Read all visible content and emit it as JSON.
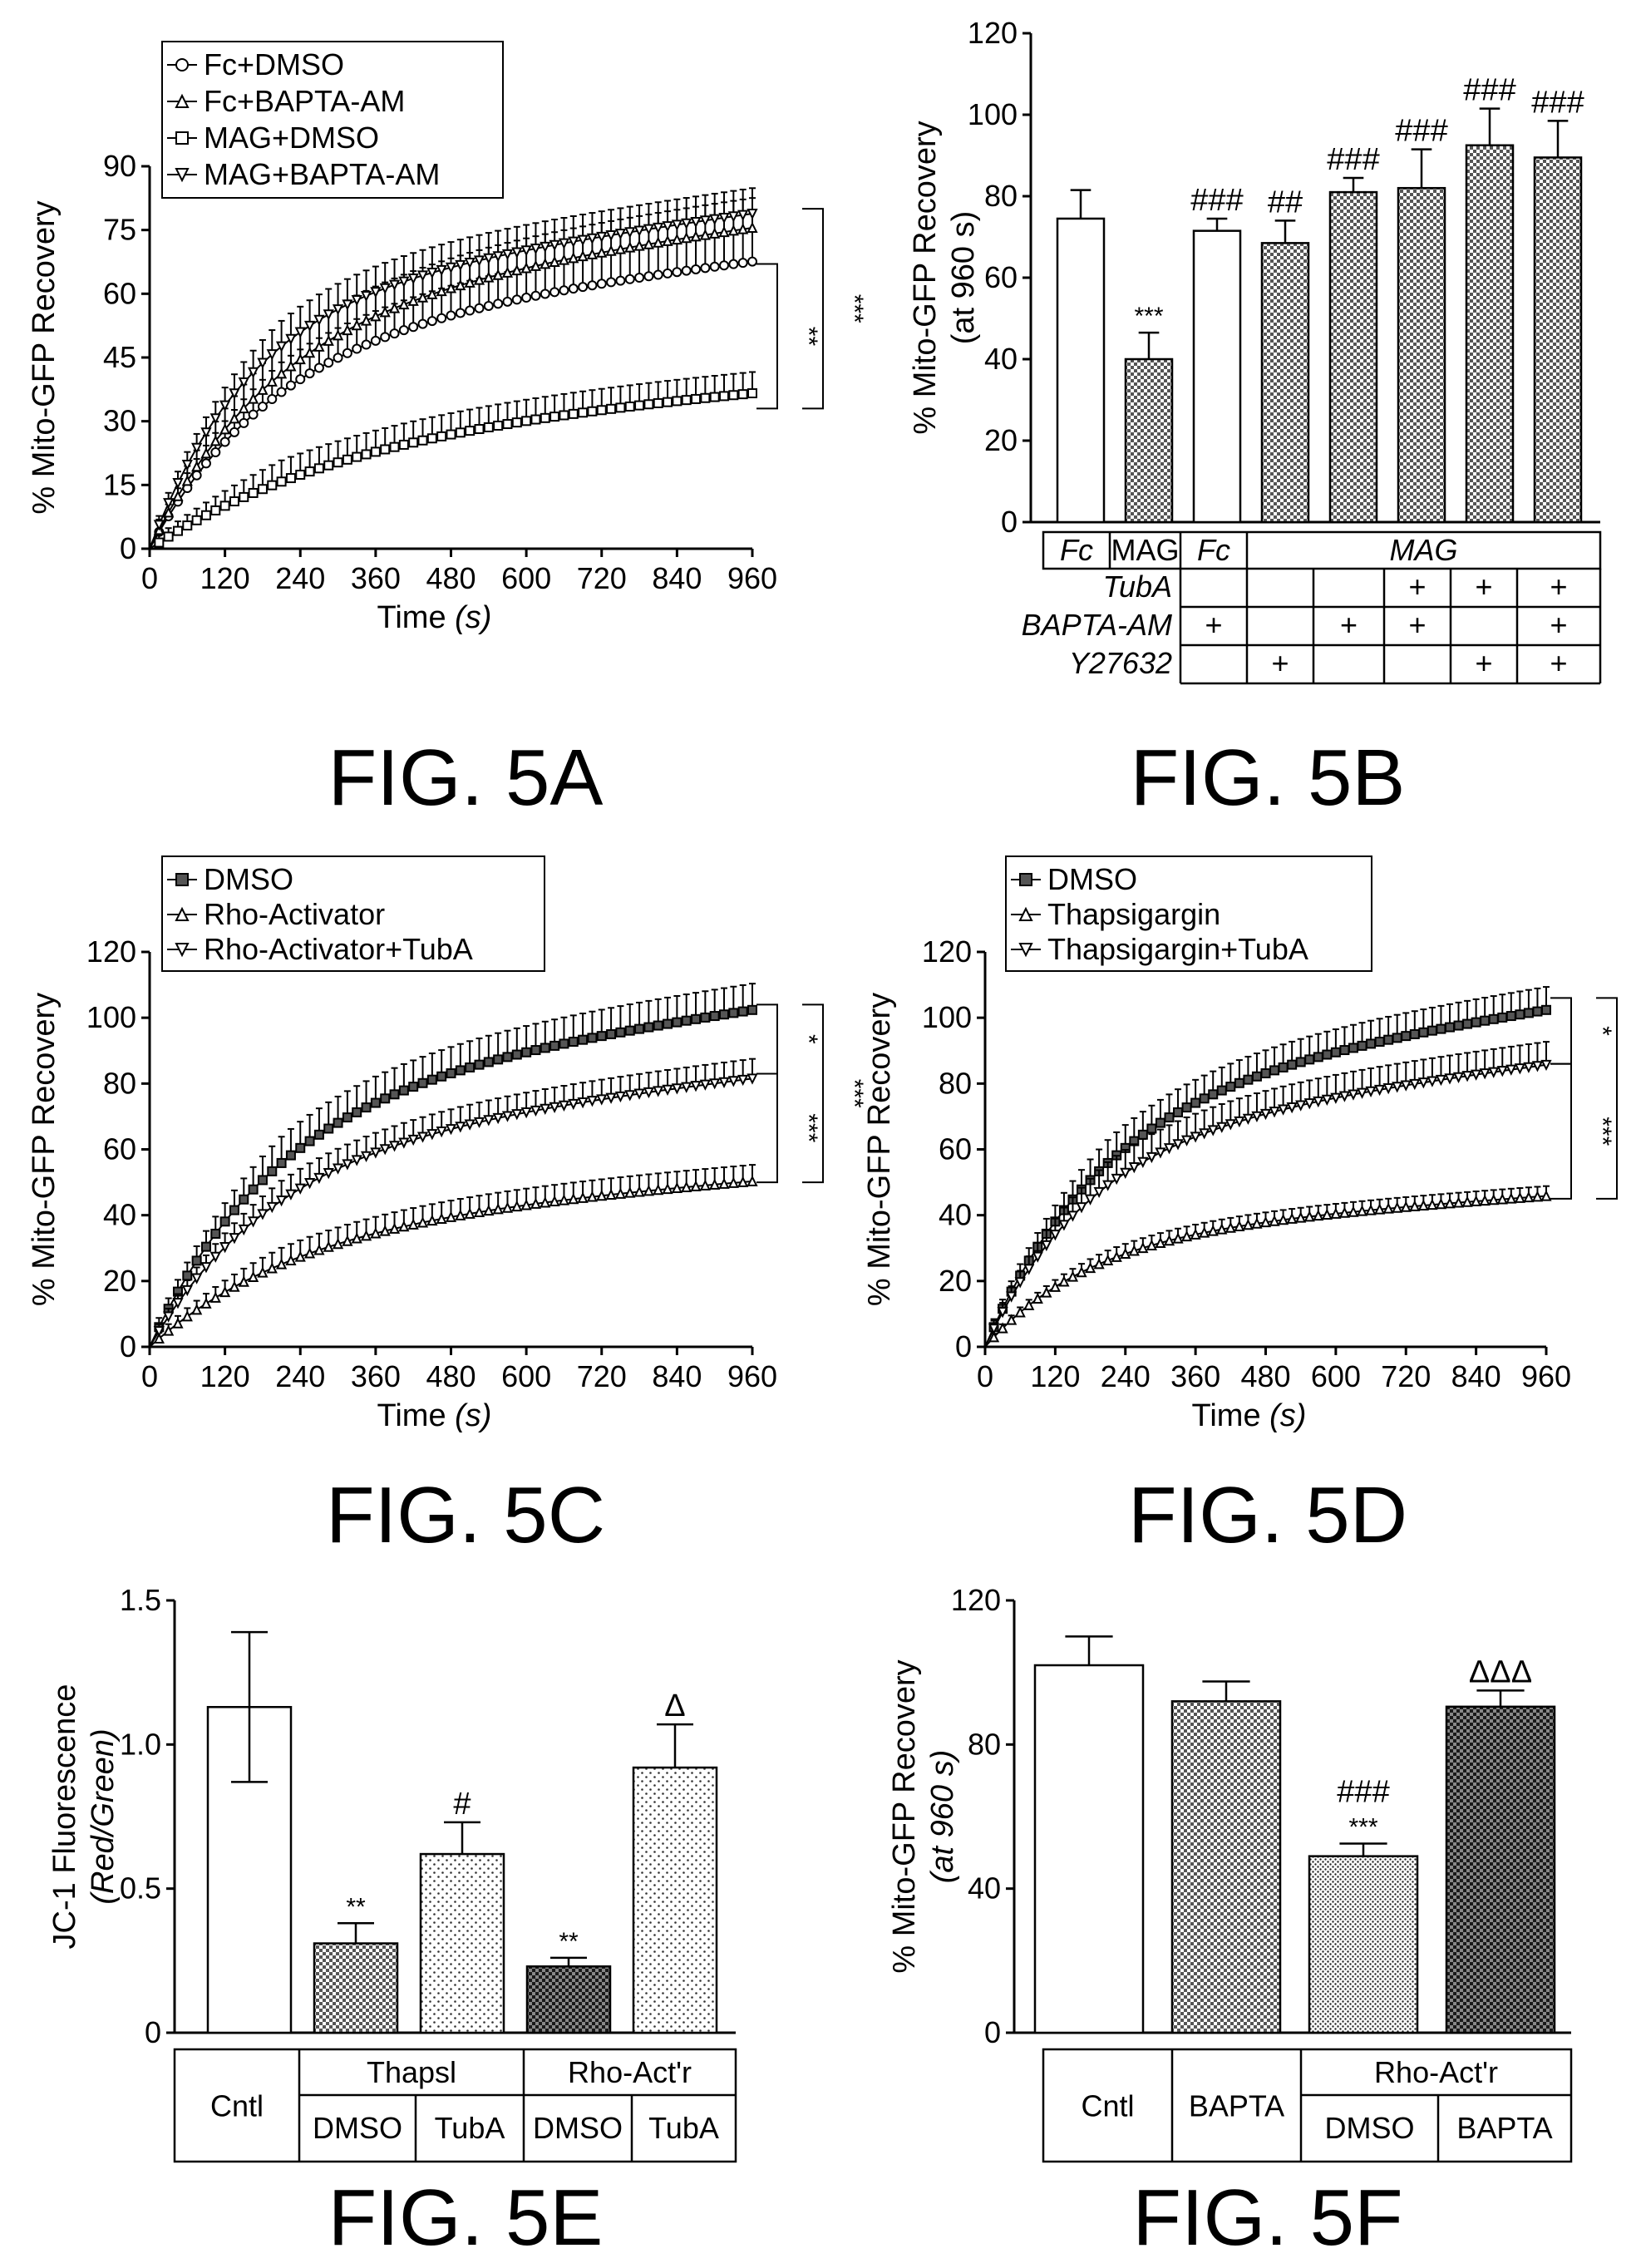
{
  "figures": {
    "a": {
      "caption": "FIG. 5A"
    },
    "b": {
      "caption": "FIG. 5B"
    },
    "c": {
      "caption": "FIG. 5C"
    },
    "d": {
      "caption": "FIG. 5D"
    },
    "e": {
      "caption": "FIG. 5E"
    },
    "f": {
      "caption": "FIG. 5F"
    }
  },
  "chart_data": [
    {
      "id": "5A",
      "type": "line",
      "xlabel": "Time",
      "xlabel_unit": "(s)",
      "ylabel": "% Mito-GFP Recovery",
      "xlim": [
        0,
        960
      ],
      "ylim": [
        0,
        90
      ],
      "xticks": [
        0,
        120,
        240,
        360,
        480,
        600,
        720,
        840,
        960
      ],
      "yticks": [
        0,
        15,
        30,
        45,
        60,
        75,
        90
      ],
      "legend_position": "top-left",
      "series": [
        {
          "name": "Fc+DMSO",
          "marker": "circle",
          "t90": 5,
          "final": 68,
          "err": 7
        },
        {
          "name": "Fc+BAPTA-AM",
          "marker": "triangle-up",
          "t90": 5,
          "final": 76,
          "err": 7
        },
        {
          "name": "MAG+DMSO",
          "marker": "square",
          "t90": 8,
          "final": 38,
          "err": 5
        },
        {
          "name": "MAG+BAPTA-AM",
          "marker": "triangle-down",
          "t90": 4,
          "final": 79,
          "err": 6
        }
      ],
      "significance": [
        {
          "label": "**",
          "from_value": 67,
          "to_value": 33
        },
        {
          "label": "***",
          "from_value": 80,
          "to_value": 33
        }
      ]
    },
    {
      "id": "5B",
      "type": "bar",
      "ylabel": "% Mito-GFP Recovery",
      "ylabel2": "(at 960 s)",
      "ylim": [
        0,
        120
      ],
      "yticks": [
        0,
        20,
        40,
        60,
        80,
        100,
        120
      ],
      "values": [
        74.5,
        40,
        71.5,
        68.5,
        81,
        82,
        92.5,
        89.5
      ],
      "errors": [
        7,
        6.5,
        3,
        5.5,
        3.5,
        9.5,
        9,
        9
      ],
      "patterns": [
        "open",
        "check",
        "open",
        "check",
        "check",
        "check",
        "check",
        "check"
      ],
      "annotations": [
        "",
        "***",
        "###",
        "##",
        "###",
        "###",
        "###",
        "###"
      ],
      "table": {
        "first_row": [
          {
            "text": "Fc",
            "italic": true,
            "span": 1
          },
          {
            "text": "MAG",
            "italic": false,
            "span": 1
          },
          {
            "text": "Fc",
            "italic": true,
            "span": 1
          },
          {
            "text": "MAG",
            "italic": true,
            "span": 5
          }
        ],
        "rows": [
          {
            "label": "TubA",
            "marks": [
              "",
              "",
              "",
              "+",
              "+",
              "+"
            ]
          },
          {
            "label": "BAPTA-AM",
            "marks": [
              "+",
              "",
              "+",
              "+",
              "",
              "+"
            ]
          },
          {
            "label": "Y27632",
            "marks": [
              "",
              "+",
              "",
              "",
              "+",
              "+"
            ]
          }
        ]
      }
    },
    {
      "id": "5C",
      "type": "line",
      "xlabel": "Time",
      "xlabel_unit": "(s)",
      "ylabel": "% Mito-GFP Recovery",
      "xlim": [
        0,
        960
      ],
      "ylim": [
        0,
        120
      ],
      "xticks": [
        0,
        120,
        240,
        360,
        480,
        600,
        720,
        840,
        960
      ],
      "yticks": [
        0,
        20,
        40,
        60,
        80,
        100,
        120
      ],
      "legend_position": "top-left",
      "series": [
        {
          "name": "DMSO",
          "marker": "square-filled",
          "t90": 5,
          "final": 103,
          "err": 8
        },
        {
          "name": "Rho-Activator",
          "marker": "triangle-up",
          "t90": 6,
          "final": 51,
          "err": 5
        },
        {
          "name": "Rho-Activator+TubA",
          "marker": "triangle-down",
          "t90": 5,
          "final": 82,
          "err": 6
        }
      ],
      "significance": [
        {
          "label": "*",
          "from_value": 104,
          "to_value": 83
        },
        {
          "label": "***",
          "from_value": 83,
          "to_value": 50
        },
        {
          "label": "***",
          "from_value": 104,
          "to_value": 50
        }
      ]
    },
    {
      "id": "5D",
      "type": "line",
      "xlabel": "Time",
      "xlabel_unit": "(s)",
      "ylabel": "% Mito-GFP Recovery",
      "xlim": [
        0,
        960
      ],
      "ylim": [
        0,
        120
      ],
      "xticks": [
        0,
        120,
        240,
        360,
        480,
        600,
        720,
        840,
        960
      ],
      "yticks": [
        0,
        20,
        40,
        60,
        80,
        100,
        120
      ],
      "legend_position": "top-left",
      "series": [
        {
          "name": "DMSO",
          "marker": "square-filled",
          "t90": 5,
          "final": 103,
          "err": 7
        },
        {
          "name": "Thapsigargin",
          "marker": "triangle-up",
          "t90": 4.5,
          "final": 46,
          "err": 3
        },
        {
          "name": "Thapsigargin+TubA",
          "marker": "triangle-down",
          "t90": 4.5,
          "final": 86,
          "err": 7
        }
      ],
      "significance": [
        {
          "label": "*",
          "from_value": 106,
          "to_value": 86
        },
        {
          "label": "***",
          "from_value": 86,
          "to_value": 45
        },
        {
          "label": "***",
          "from_value": 106,
          "to_value": 45
        }
      ]
    },
    {
      "id": "5E",
      "type": "bar",
      "ylabel": "JC-1 Fluorescence",
      "ylabel2": "(Red/Green)",
      "ylim": [
        0,
        1.5
      ],
      "yticks": [
        "0",
        "0.5",
        "1.0",
        "1.5"
      ],
      "values": [
        1.13,
        0.31,
        0.62,
        0.23,
        0.92
      ],
      "errors": [
        0.26,
        0.07,
        0.11,
        0.03,
        0.15
      ],
      "patterns": [
        "open",
        "check",
        "dots-sparse",
        "check-dark",
        "dots-sparse"
      ],
      "annotations": [
        "",
        "**",
        "#",
        "**",
        "Δ"
      ],
      "table": {
        "groups": [
          {
            "label": "Cntl",
            "children": []
          },
          {
            "label": "Thapsl",
            "children": [
              "DMSO",
              "TubA"
            ]
          },
          {
            "label": "Rho-Act'r",
            "children": [
              "DMSO",
              "TubA"
            ]
          }
        ]
      }
    },
    {
      "id": "5F",
      "type": "bar",
      "ylabel": "% Mito-GFP Recovery",
      "ylabel2": "(at 960 s)",
      "ylim": [
        0,
        120
      ],
      "yticks": [
        0,
        40,
        80,
        120
      ],
      "values": [
        102,
        92,
        49,
        90.5
      ],
      "errors": [
        8,
        5.5,
        3.5,
        4.5
      ],
      "patterns": [
        "open",
        "check",
        "dots-dense",
        "check-dark"
      ],
      "annotations": [
        "",
        "",
        "###|***",
        "ΔΔΔ"
      ],
      "table": {
        "groups": [
          {
            "label": "Cntl",
            "children": []
          },
          {
            "label": "BAPTA",
            "children": []
          },
          {
            "label": "Rho-Act'r",
            "children": [
              "DMSO",
              "BAPTA"
            ]
          }
        ]
      }
    }
  ]
}
